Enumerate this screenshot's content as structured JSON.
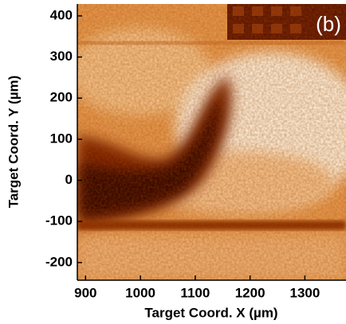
{
  "chart_data": {
    "type": "heatmap",
    "panel_label": "(b)",
    "x_label": "Target Coord. X (µm)",
    "y_label": "Target Coord. Y (µm)",
    "xlim": [
      885,
      1375
    ],
    "ylim": [
      -243,
      429
    ],
    "xticks": [
      900,
      1000,
      1100,
      1200,
      1300
    ],
    "yticks": [
      400,
      300,
      200,
      100,
      0,
      -100,
      -200
    ]
  }
}
